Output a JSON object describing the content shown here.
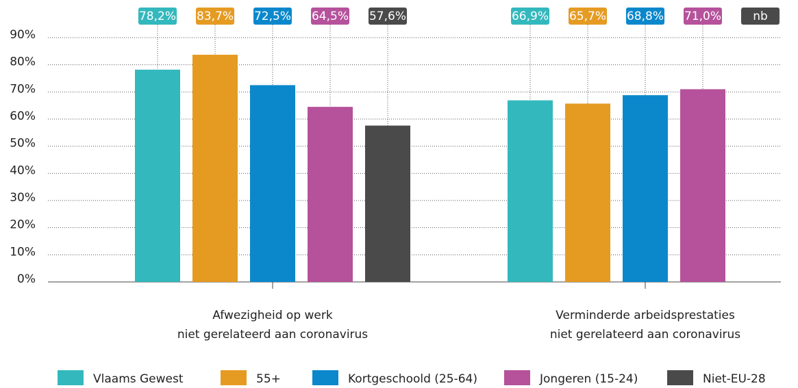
{
  "chart_data": {
    "type": "bar",
    "categories": [
      [
        "Afwezigheid op werk",
        "niet gerelateerd aan coronavirus"
      ],
      [
        "Verminderde arbeidsprestaties",
        "niet gerelateerd aan coronavirus"
      ]
    ],
    "series": [
      {
        "name": "Vlaams Gewest",
        "color": "#33b8bd",
        "values": [
          78.2,
          66.9
        ],
        "value_labels": [
          "78,2%",
          "66,9%"
        ]
      },
      {
        "name": "55+",
        "color": "#e59b22",
        "values": [
          83.7,
          65.7
        ],
        "value_labels": [
          "83,7%",
          "65,7%"
        ]
      },
      {
        "name": "Kortgeschoold (25-64)",
        "color": "#0b88cc",
        "values": [
          72.5,
          68.8
        ],
        "value_labels": [
          "72,5%",
          "68,8%"
        ]
      },
      {
        "name": "Jongeren (15-24)",
        "color": "#b5529b",
        "values": [
          64.5,
          71.0
        ],
        "value_labels": [
          "64,5%",
          "71,0%"
        ]
      },
      {
        "name": "Niet-EU-28",
        "color": "#4a4a4a",
        "values": [
          57.6,
          null
        ],
        "value_labels": [
          "57,6%",
          "nb"
        ]
      }
    ],
    "ylim": [
      0,
      90
    ],
    "yticks": [
      {
        "value": 0,
        "label": "0%"
      },
      {
        "value": 10,
        "label": "10%"
      },
      {
        "value": 20,
        "label": "20%"
      },
      {
        "value": 30,
        "label": "30%"
      },
      {
        "value": 40,
        "label": "40%"
      },
      {
        "value": 50,
        "label": "50%"
      },
      {
        "value": 60,
        "label": "60%"
      },
      {
        "value": 70,
        "label": "70%"
      },
      {
        "value": 80,
        "label": "80%"
      },
      {
        "value": 90,
        "label": "90%"
      }
    ],
    "grid": true,
    "legend": "bottom"
  }
}
